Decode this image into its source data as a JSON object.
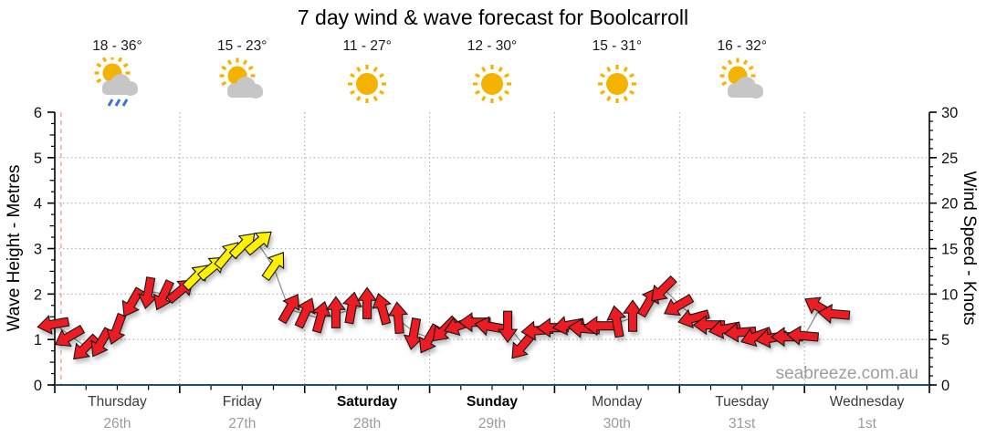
{
  "title": "7 day wind & wave forecast for Boolcarroll",
  "watermark": "seabreeze.com.au",
  "daily_summary": [
    {
      "temp": "18 - 36°",
      "icon": "sun-rain-icon"
    },
    {
      "temp": "15 - 23°",
      "icon": "sun-cloud-icon"
    },
    {
      "temp": "11 - 27°",
      "icon": "sun-icon"
    },
    {
      "temp": "12 - 30°",
      "icon": "sun-icon"
    },
    {
      "temp": "15 - 31°",
      "icon": "sun-icon"
    },
    {
      "temp": "16 - 32°",
      "icon": "sun-cloud-icon"
    }
  ],
  "x_axis": {
    "days": [
      {
        "name": "Thursday",
        "date": "26th",
        "weekend": false
      },
      {
        "name": "Friday",
        "date": "27th",
        "weekend": false
      },
      {
        "name": "Saturday",
        "date": "28th",
        "weekend": true
      },
      {
        "name": "Sunday",
        "date": "29th",
        "weekend": true
      },
      {
        "name": "Monday",
        "date": "30th",
        "weekend": false
      },
      {
        "name": "Tuesday",
        "date": "31st",
        "weekend": false
      },
      {
        "name": "Wednesday",
        "date": "1st",
        "weekend": false
      }
    ]
  },
  "left_axis": {
    "label": "Wave Height - Metres",
    "ticks": [
      "0",
      "1",
      "2",
      "3",
      "4",
      "5",
      "6"
    ]
  },
  "right_axis": {
    "label": "Wind Speed - Knots",
    "ticks": [
      "0",
      "5",
      "10",
      "15",
      "20",
      "25",
      "30"
    ]
  },
  "colors": {
    "arrow_red": "#ed1c24",
    "arrow_yellow": "#fff200",
    "arrow_outline": "#181818",
    "axis_x_line": "#1f4e79",
    "axis_y_line": "#000000",
    "grid": "#b0b0b0",
    "now_line": "#f59f9f",
    "connector": "#909090",
    "sun": "#f5b301",
    "cloud": "#c6c6c6",
    "rain": "#3b72d9"
  },
  "chart_data": {
    "type": "line",
    "marker": "wind-direction-arrow",
    "title": "7 day wind & wave forecast for Boolcarroll",
    "ylabel_left": "Wave Height - Metres",
    "ylabel_right": "Wind Speed - Knots",
    "ylim_left": [
      0,
      6
    ],
    "ylim_right": [
      0,
      30
    ],
    "x_span_hours": 168,
    "x_day_labels": [
      "Thursday 26th",
      "Friday 27th",
      "Saturday 28th",
      "Sunday 29th",
      "Monday 30th",
      "Tuesday 31st",
      "Wednesday 1st"
    ],
    "grid": "dotted horizontal lines every 1 m / 5 knots, dotted vertical lines at day boundaries",
    "now_marker_hour": 1.2,
    "dir_note": "dir_deg: 0 = arrow points right (east on screen), degrees clockwise",
    "color_rule": "yellow arrows = moderate wind (~12+ knots), red arrows = lighter wind",
    "series": [
      {
        "name": "Wind Speed (knots)",
        "axis": "right",
        "t_hours": [
          0,
          3,
          6,
          9,
          12,
          15,
          18,
          21,
          24,
          27,
          30,
          33,
          36,
          39,
          42,
          45,
          48,
          51,
          54,
          57,
          60,
          63,
          66,
          69,
          72,
          75,
          78,
          81,
          84,
          87,
          90,
          93,
          96,
          99,
          102,
          105,
          108,
          111,
          114,
          117,
          120,
          123,
          126,
          129,
          132,
          135,
          138,
          141,
          144,
          147,
          150
        ],
        "knots": [
          6.7,
          5.4,
          4.2,
          4.8,
          6.3,
          9.2,
          10.3,
          10,
          10.3,
          11.8,
          12.8,
          14.2,
          15.3,
          15.6,
          13,
          8.3,
          7.8,
          7.3,
          7.8,
          8.3,
          8.8,
          8.2,
          7.2,
          5.8,
          5.2,
          6.2,
          6.6,
          6.9,
          6.4,
          6.6,
          4.4,
          6,
          6.3,
          6.6,
          6.2,
          6.5,
          6.8,
          7.4,
          9,
          10.6,
          8.8,
          7.4,
          6.6,
          6.2,
          5.8,
          5.4,
          5.2,
          5.3,
          5.4,
          8.5,
          7.8
        ],
        "dir_deg": [
          170,
          150,
          135,
          120,
          110,
          120,
          100,
          115,
          320,
          315,
          320,
          310,
          315,
          320,
          305,
          300,
          295,
          285,
          270,
          280,
          270,
          255,
          265,
          100,
          120,
          135,
          160,
          180,
          190,
          90,
          130,
          175,
          180,
          170,
          185,
          180,
          260,
          270,
          300,
          135,
          150,
          165,
          180,
          170,
          175,
          160,
          170,
          180,
          185,
          210,
          185
        ],
        "color_key": [
          "r",
          "r",
          "r",
          "r",
          "r",
          "r",
          "r",
          "r",
          "r",
          "y",
          "y",
          "y",
          "y",
          "y",
          "y",
          "r",
          "r",
          "r",
          "r",
          "r",
          "r",
          "r",
          "r",
          "r",
          "r",
          "r",
          "r",
          "r",
          "r",
          "r",
          "r",
          "r",
          "r",
          "r",
          "r",
          "r",
          "r",
          "r",
          "r",
          "r",
          "r",
          "r",
          "r",
          "r",
          "r",
          "r",
          "r",
          "r",
          "r",
          "r",
          "r"
        ]
      }
    ]
  }
}
